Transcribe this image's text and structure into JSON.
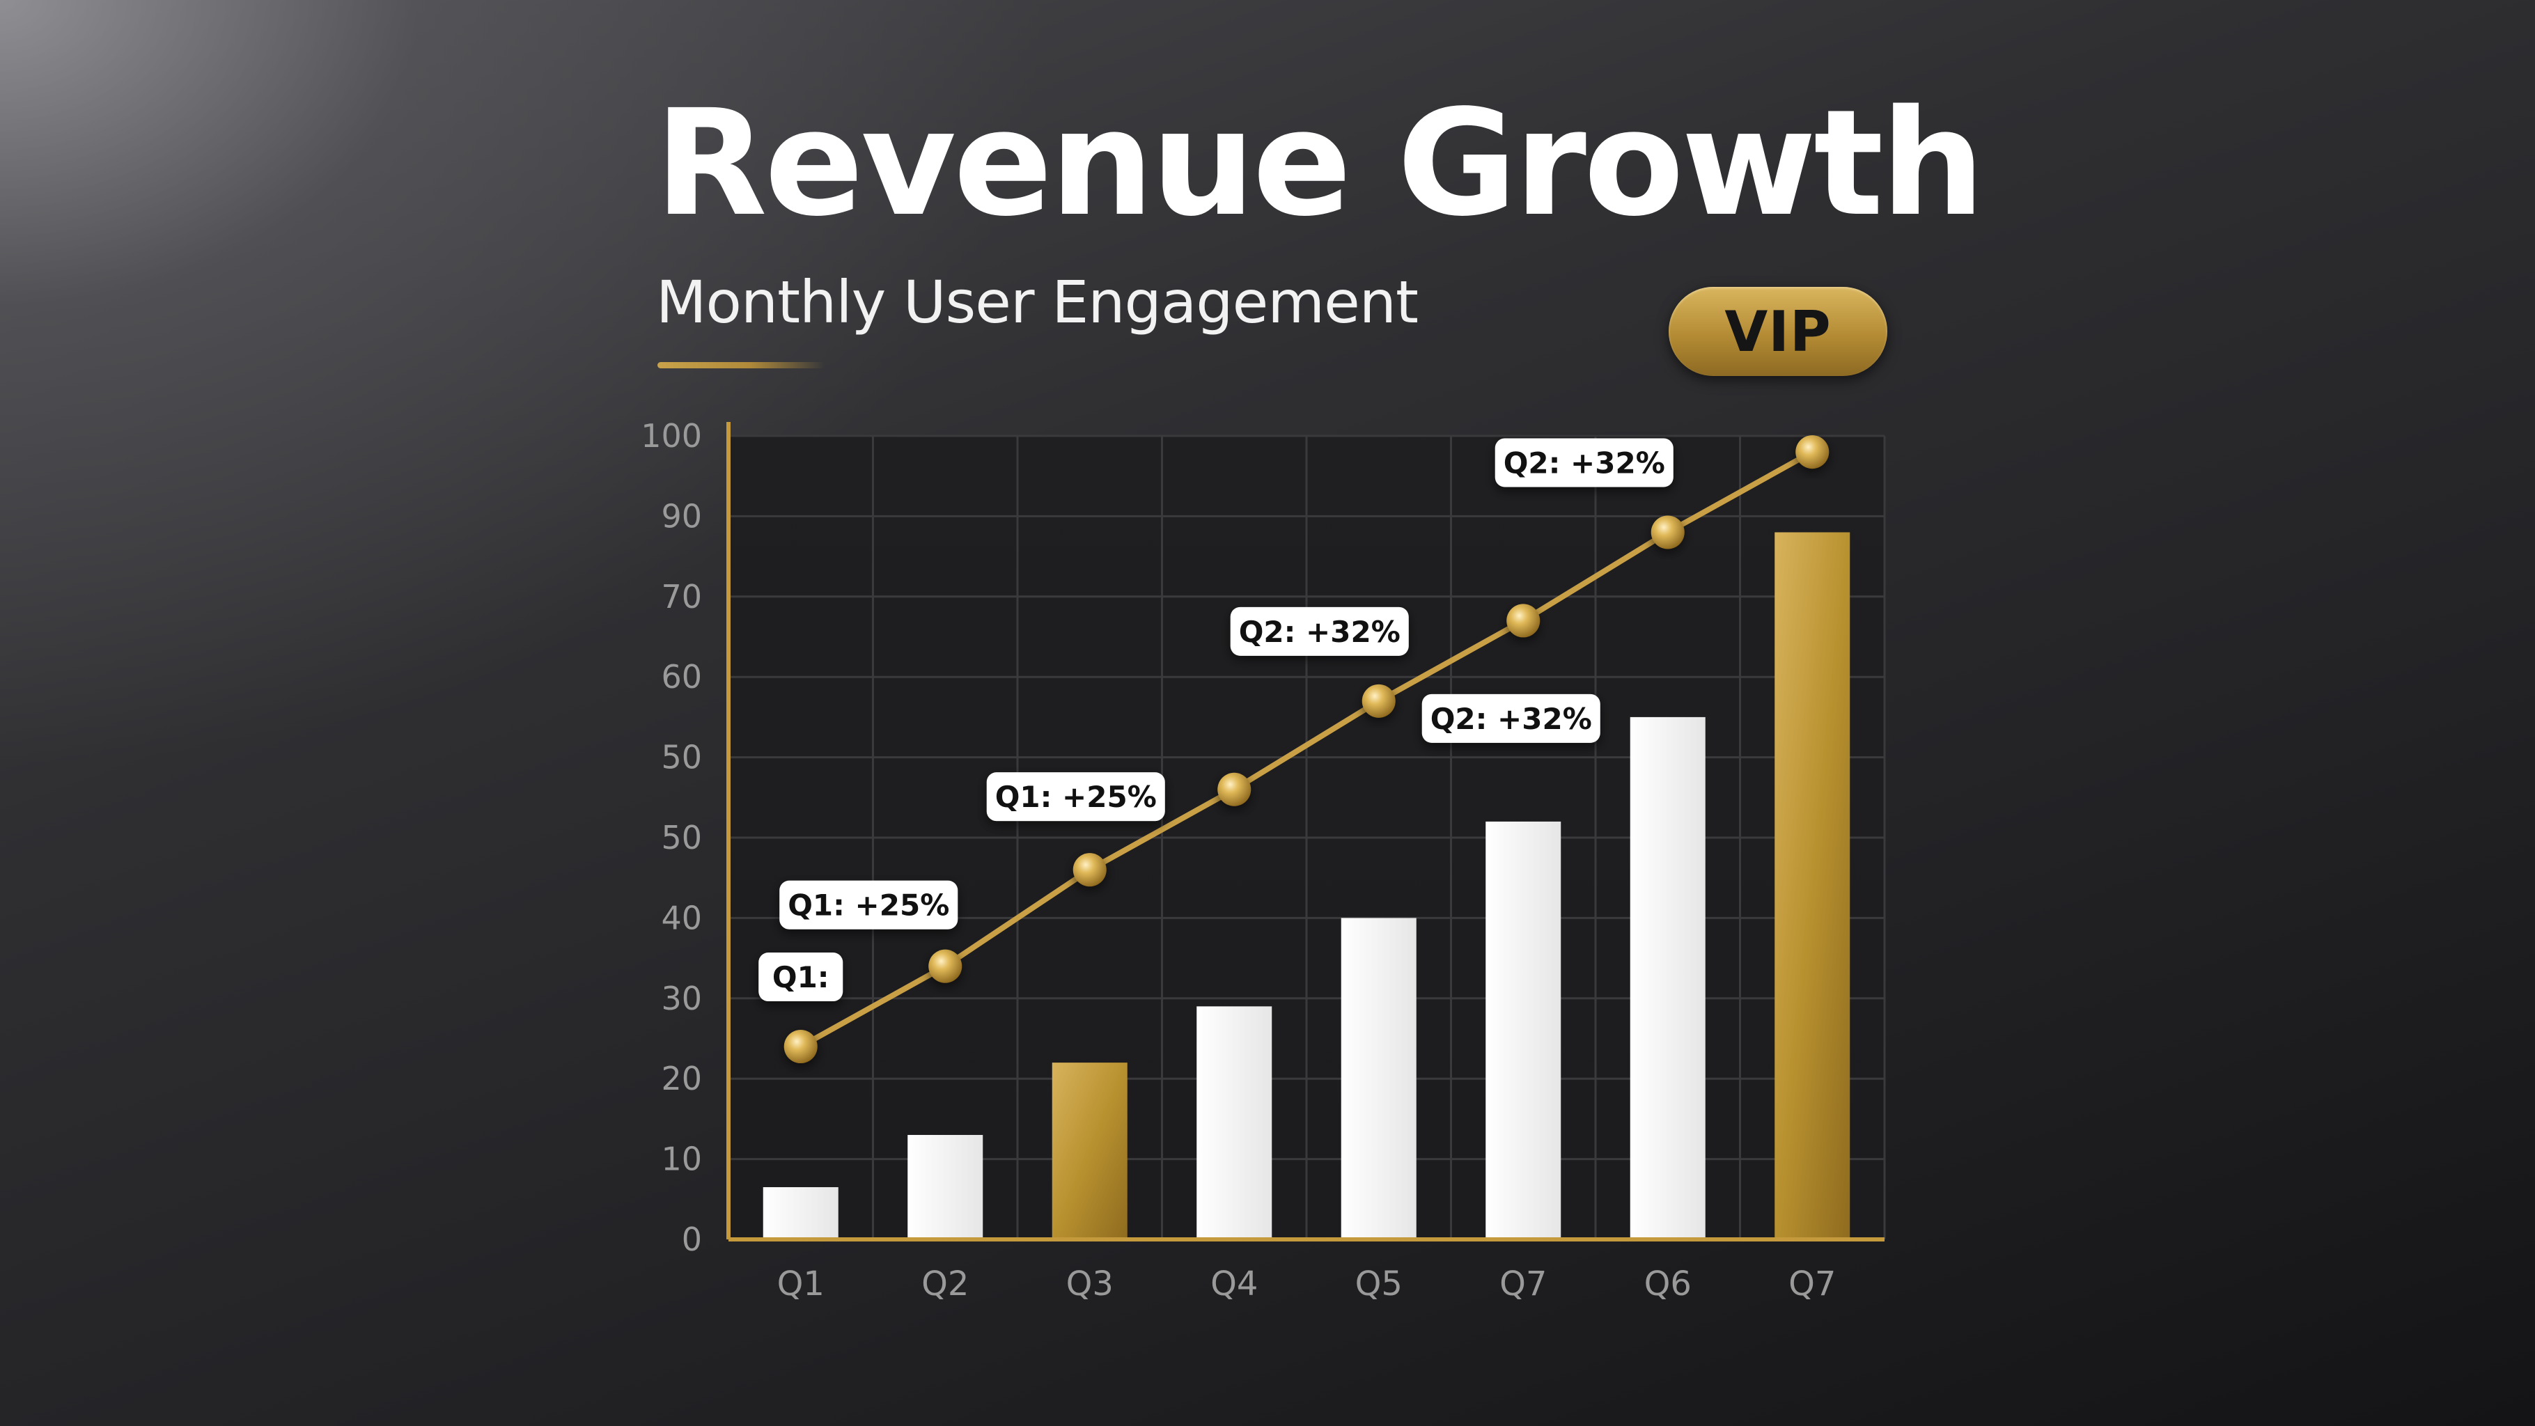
{
  "header": {
    "title": "Revenue Growth",
    "subtitle": "Monthly User Engagement",
    "badge": "VIP"
  },
  "colors": {
    "gold": "#c49a3c",
    "white_bar": "#f3f3f3",
    "grid": "#3a3a3d",
    "axis_text": "#9a9a9a"
  },
  "chart_data": {
    "type": "bar",
    "title": "",
    "xlabel": "",
    "ylabel": "",
    "grid": true,
    "categories": [
      "Q1",
      "Q2",
      "Q3",
      "Q4",
      "Q5",
      "Q7",
      "Q6",
      "Q7"
    ],
    "y_tick_labels": [
      "0",
      "10",
      "20",
      "30",
      "40",
      "50",
      "50",
      "60",
      "70",
      "90",
      "100"
    ],
    "ylim": [
      0,
      100
    ],
    "series": [
      {
        "type": "bar",
        "values": [
          6.5,
          13,
          22,
          29,
          40,
          52,
          65,
          88
        ],
        "highlight": [
          false,
          false,
          true,
          false,
          false,
          false,
          false,
          true
        ]
      },
      {
        "type": "line",
        "values": [
          24,
          34,
          46,
          56,
          67,
          77,
          88,
          98
        ]
      }
    ],
    "annotations": [
      {
        "text": "Q1:",
        "category_index": 0
      },
      {
        "text": "Q1: +25%",
        "category_index": 1
      },
      {
        "text": "Q1: +25%",
        "category_index": 2
      },
      {
        "text": "Q2: +32%",
        "category_index": 4
      },
      {
        "text": "Q2: +32%",
        "category_index": 4
      },
      {
        "text": "Q2: +32%",
        "category_index": 6
      }
    ]
  }
}
